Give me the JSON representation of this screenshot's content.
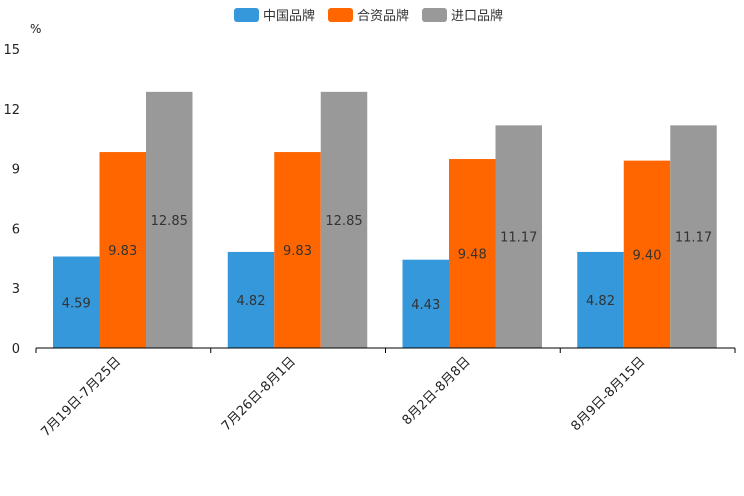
{
  "chart_data": {
    "type": "bar",
    "title": "",
    "ylabel": "%",
    "xlabel": "",
    "ylim": [
      0,
      15
    ],
    "yticks": [
      0,
      3,
      6,
      9,
      12,
      15
    ],
    "categories": [
      "7月19日-7月25日",
      "7月26日-8月1日",
      "8月2日-8月8日",
      "8月9日-8月15日"
    ],
    "series": [
      {
        "name": "中国品牌",
        "color": "#3498db",
        "values": [
          4.59,
          4.82,
          4.43,
          4.82
        ],
        "labels": [
          "4.59",
          "4.82",
          "4.43",
          "4.82"
        ]
      },
      {
        "name": "合资品牌",
        "color": "#ff6600",
        "values": [
          9.83,
          9.83,
          9.48,
          9.4
        ],
        "labels": [
          "9.83",
          "9.83",
          "9.48",
          "9.40"
        ]
      },
      {
        "name": "进口品牌",
        "color": "#999999",
        "values": [
          12.85,
          12.85,
          11.17,
          11.17
        ],
        "labels": [
          "12.85",
          "12.85",
          "11.17",
          "11.17"
        ]
      }
    ],
    "legend_position": "top-center",
    "grid": false
  }
}
